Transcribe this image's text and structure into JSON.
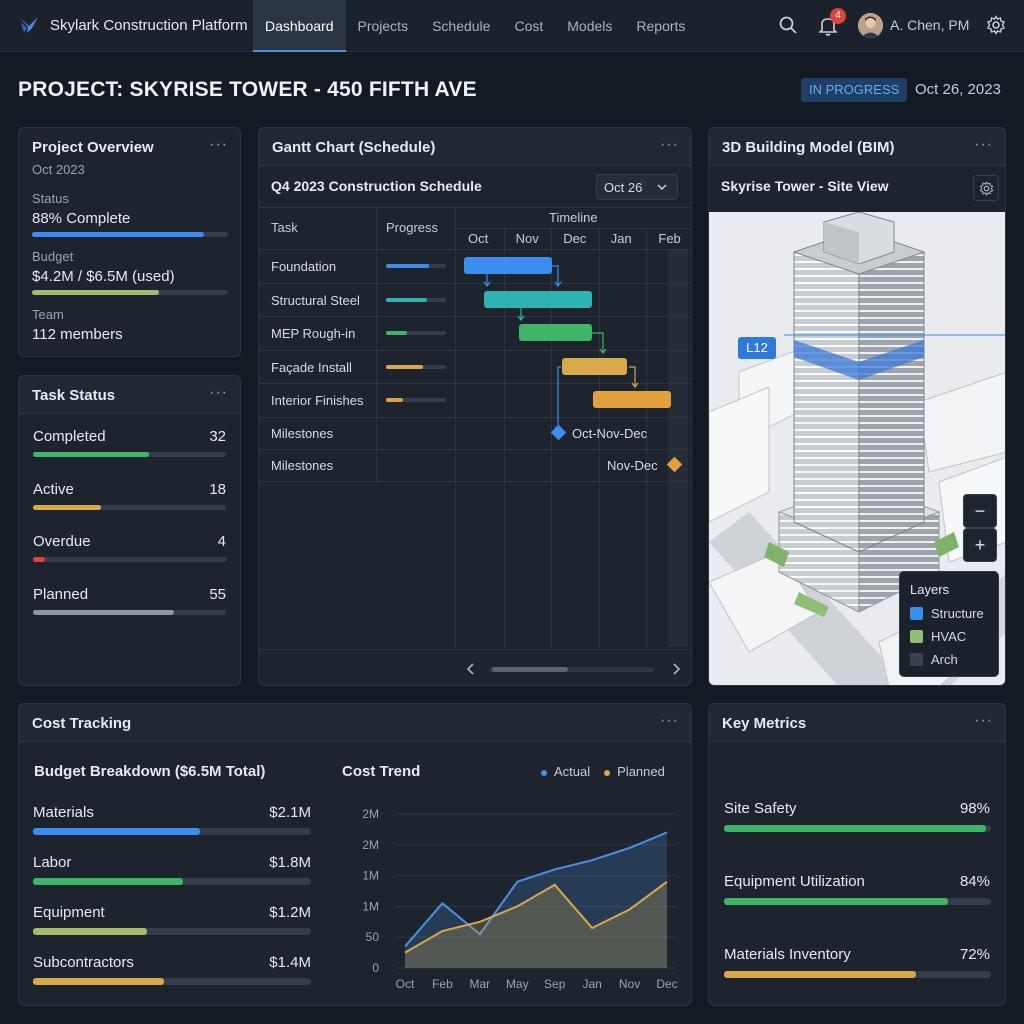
{
  "app": {
    "name": "Skylark Construction Platform",
    "nav": [
      {
        "label": "Dashboard",
        "active": true
      },
      {
        "label": "Projects"
      },
      {
        "label": "Schedule"
      },
      {
        "label": "Cost"
      },
      {
        "label": "Models"
      },
      {
        "label": "Reports"
      }
    ],
    "notifications": "4",
    "user": "A. Chen, PM",
    "icons": [
      "bird-logo-icon",
      "search-icon",
      "bell-icon",
      "gear-icon"
    ]
  },
  "page": {
    "title": "PROJECT: SKYRISE TOWER - 450 FIFTH AVE",
    "status": "IN PROGRESS",
    "date": "Oct 26, 2023"
  },
  "overview": {
    "title": "Project Overview",
    "subtitle": "Oct 2023",
    "more": "···",
    "status_label": "Status",
    "status_value": "88% Complete",
    "status_progress": 0.88,
    "budget_label": "Budget",
    "budget_value": "$4.2M / $6.5M (used)",
    "budget_progress": 0.65,
    "team_label": "Team",
    "team_value": "112 members"
  },
  "task_status": {
    "title": "Task Status",
    "more": "···",
    "items": [
      {
        "label": "Completed",
        "count": "32",
        "fill": 0.6,
        "color": "#3fb56a"
      },
      {
        "label": "Active",
        "count": "18",
        "fill": 0.35,
        "color": "#d9a84a"
      },
      {
        "label": "Overdue",
        "count": "4",
        "fill": 0.06,
        "color": "#e0413a"
      },
      {
        "label": "Planned",
        "count": "55",
        "fill": 0.73,
        "color": "#8d96a2"
      }
    ]
  },
  "gantt": {
    "title": "Gantt Chart (Schedule)",
    "more": "···",
    "subtitle": "Q4 2023 Construction Schedule",
    "date_select": "Oct 26",
    "col_task": "Task",
    "col_progress": "Progress",
    "col_timeline": "Timeline",
    "months": [
      "Oct",
      "Nov",
      "Dec",
      "Jan",
      "Feb"
    ],
    "tasks": [
      {
        "name": "Foundation",
        "progress": 0.72,
        "color": "#3b8ef0"
      },
      {
        "name": "Structural Steel",
        "progress": 0.68,
        "color": "#2fb3b0"
      },
      {
        "name": "MEP Rough-in",
        "progress": 0.35,
        "color": "#3fb56a"
      },
      {
        "name": "Façade Install",
        "progress": 0.62,
        "color": "#d9a84a"
      },
      {
        "name": "Interior Finishes",
        "progress": 0.28,
        "color": "#e2a13a"
      }
    ],
    "milestones": [
      {
        "name": "Milestones",
        "label": "Oct-Nov-Dec",
        "color": "#3b8ef0"
      },
      {
        "name": "Milestones",
        "label": "Nov-Dec",
        "color": "#e2a13a"
      }
    ]
  },
  "bim": {
    "title": "3D Building Model (BIM)",
    "more": "···",
    "subtitle": "Skyrise Tower - Site View",
    "level_tag": "L12",
    "zoom_out": "−",
    "zoom_in": "+",
    "layers_title": "Layers",
    "layers": [
      {
        "label": "Structure",
        "color": "#3b8ef0"
      },
      {
        "label": "HVAC",
        "color": "#8fbf74"
      },
      {
        "label": "Arch",
        "color": "#3a424d"
      }
    ]
  },
  "cost": {
    "title": "Cost Tracking",
    "more": "···",
    "breakdown_title": "Budget Breakdown ($6.5M Total)",
    "breakdown": [
      {
        "label": "Materials",
        "value": "$2.1M",
        "fill": 0.6,
        "color": "#3b8ef0"
      },
      {
        "label": "Labor",
        "value": "$1.8M",
        "fill": 0.54,
        "color": "#3fb56a"
      },
      {
        "label": "Equipment",
        "value": "$1.2M",
        "fill": 0.41,
        "color": "#a9b86a"
      },
      {
        "label": "Subcontractors",
        "value": "$1.4M",
        "fill": 0.47,
        "color": "#d9a84a"
      }
    ]
  },
  "chart_data": {
    "type": "area",
    "title": "Cost Trend",
    "categories": [
      "Oct",
      "Feb",
      "Mar",
      "May",
      "Sep",
      "Jan",
      "Nov",
      "Dec"
    ],
    "y_tick_labels": [
      "0",
      "50",
      "1M",
      "1M",
      "2M",
      "2M"
    ],
    "series": [
      {
        "name": "Actual",
        "color": "#4a90e2",
        "values": [
          0.35,
          1.05,
          0.55,
          1.4,
          1.6,
          1.75,
          1.95,
          2.2
        ]
      },
      {
        "name": "Planned",
        "color": "#d9a84a",
        "values": [
          0.25,
          0.6,
          0.75,
          1.0,
          1.35,
          0.65,
          0.95,
          1.4
        ]
      }
    ],
    "ylim": [
      0,
      2.5
    ],
    "grid": true,
    "legend": "top-right"
  },
  "metrics": {
    "title": "Key Metrics",
    "more": "···",
    "items": [
      {
        "label": "Site Safety",
        "value": "98%",
        "fill": 0.98,
        "color": "#3fb56a"
      },
      {
        "label": "Equipment Utilization",
        "value": "84%",
        "fill": 0.84,
        "color": "#3fb56a"
      },
      {
        "label": "Materials Inventory",
        "value": "72%",
        "fill": 0.72,
        "color": "#d9a84a"
      }
    ]
  }
}
